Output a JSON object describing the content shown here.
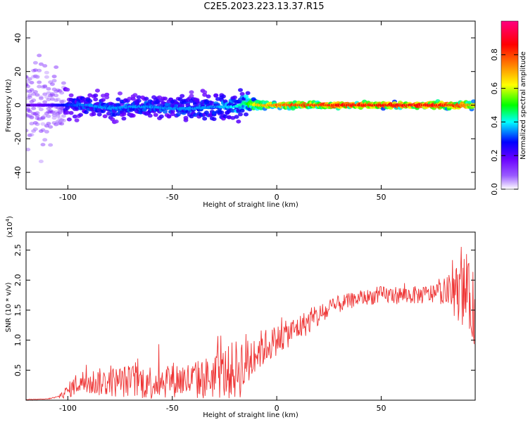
{
  "title": "C2E5.2023.223.13.37.R15",
  "chart_data": [
    {
      "type": "heatmap",
      "xlabel": "Height of straight line (km)",
      "ylabel": "Frequency (Hz)",
      "xlim": [
        -120,
        95
      ],
      "ylim": [
        -50,
        50
      ],
      "xticks": [
        -100,
        -50,
        0,
        50
      ],
      "xtick_labels": [
        "-100",
        "-50",
        "0",
        "50"
      ],
      "yticks": [
        -40,
        -20,
        0,
        20,
        40
      ],
      "ytick_labels": [
        "-40",
        "-20",
        "0",
        "20",
        "40"
      ],
      "colorbar": {
        "label": "Normalized spectral amplitude",
        "range": [
          0,
          1
        ],
        "ticks": [
          0.0,
          0.2,
          0.4,
          0.6,
          0.8
        ],
        "tick_labels": [
          "0.0",
          "0.2",
          "0.4",
          "0.6",
          "0.8"
        ],
        "colormap": [
          "#ffffff",
          "#6a00ff",
          "#0000ff",
          "#00ffff",
          "#00ff00",
          "#ffff00",
          "#ff8000",
          "#ff0000",
          "#ff0080"
        ]
      },
      "ridge": {
        "x": [
          -120,
          -110,
          -100,
          -90,
          -80,
          -70,
          -60,
          -50,
          -40,
          -30,
          -20,
          -15,
          -10,
          0,
          10,
          20,
          30,
          40,
          50,
          60,
          70,
          80,
          90,
          95
        ],
        "frequency": [
          0,
          0,
          0,
          0,
          -2,
          -1,
          -1,
          -2,
          -2,
          -1,
          -1,
          1,
          0,
          0,
          0,
          0,
          0,
          0,
          0,
          0,
          0,
          0,
          0,
          0
        ],
        "amplitude": [
          0.1,
          0.15,
          0.25,
          0.3,
          0.3,
          0.3,
          0.3,
          0.3,
          0.3,
          0.3,
          0.35,
          0.4,
          0.6,
          0.7,
          0.75,
          0.75,
          0.8,
          0.8,
          0.8,
          0.8,
          0.8,
          0.8,
          0.7,
          0.6
        ],
        "spread_hz": [
          30,
          25,
          8,
          6,
          6,
          6,
          6,
          6,
          7,
          8,
          8,
          7,
          2,
          1.5,
          1.5,
          1.5,
          1.5,
          1.5,
          1.5,
          1.5,
          1.5,
          1.5,
          2,
          2
        ]
      }
    },
    {
      "type": "line",
      "xlabel": "Height of straight line (km)",
      "ylabel": "SNR (10 * v/v)",
      "y_multiplier": "(x10",
      "y_multiplier_exponent": "4",
      "y_multiplier_close": ")",
      "xlim": [
        -120,
        95
      ],
      "ylim": [
        0,
        2.8
      ],
      "xticks": [
        -100,
        -50,
        0,
        50
      ],
      "xtick_labels": [
        "-100",
        "-50",
        "0",
        "50"
      ],
      "yticks": [
        0.5,
        1.0,
        1.5,
        2.0,
        2.5
      ],
      "ytick_labels": [
        "0.5",
        "1.0",
        "1.5",
        "2.0",
        "2.5"
      ],
      "color": "#ee3333",
      "trend": {
        "x": [
          -120,
          -110,
          -105,
          -100,
          -95,
          -90,
          -80,
          -70,
          -60,
          -50,
          -40,
          -30,
          -20,
          -15,
          -10,
          -5,
          0,
          10,
          20,
          30,
          40,
          50,
          60,
          70,
          80,
          85,
          90,
          95
        ],
        "y": [
          0.01,
          0.02,
          0.05,
          0.15,
          0.3,
          0.3,
          0.3,
          0.32,
          0.3,
          0.35,
          0.32,
          0.4,
          0.5,
          0.6,
          0.8,
          0.9,
          1.0,
          1.2,
          1.4,
          1.6,
          1.7,
          1.75,
          1.75,
          1.75,
          1.8,
          1.8,
          1.8,
          1.5
        ],
        "noise_amplitude": [
          0.002,
          0.005,
          0.02,
          0.12,
          0.2,
          0.22,
          0.25,
          0.28,
          0.3,
          0.3,
          0.32,
          0.38,
          0.5,
          0.55,
          0.35,
          0.3,
          0.25,
          0.22,
          0.2,
          0.15,
          0.12,
          0.15,
          0.15,
          0.15,
          0.2,
          0.4,
          0.6,
          0.6
        ]
      }
    }
  ]
}
